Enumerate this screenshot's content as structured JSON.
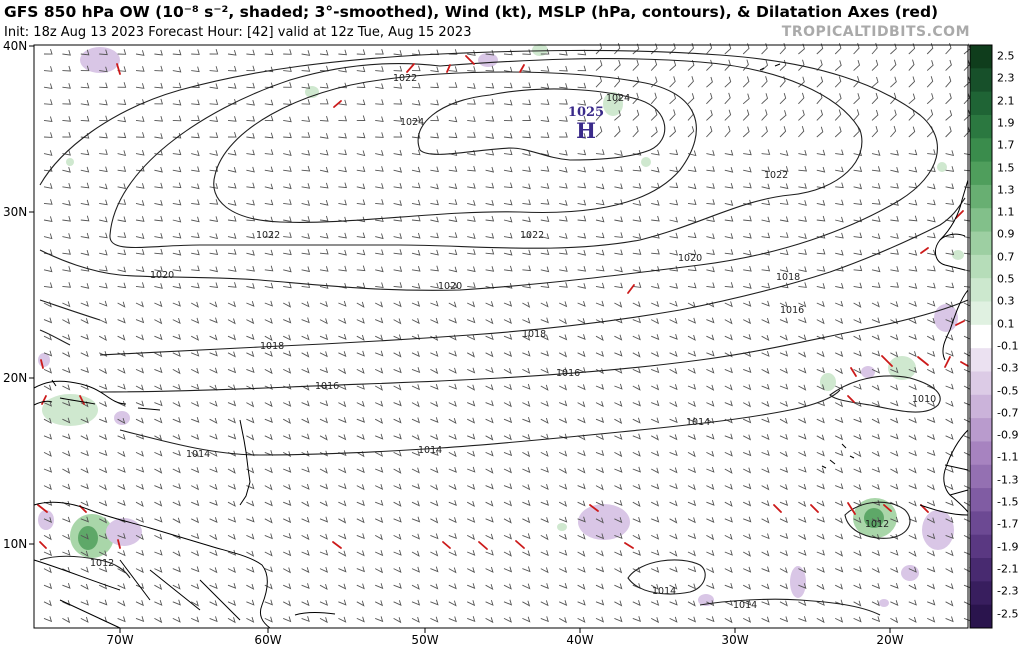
{
  "header": {
    "title": "GFS 850 hPa OW (10⁻⁸ s⁻², shaded; 3°-smoothed), Wind (kt), MSLP (hPa, contours), & Dilatation Axes (red)",
    "subtitle": "Init: 18z Aug 13 2023   Forecast Hour: [42]   valid at 12z Tue, Aug 15 2023",
    "watermark": "TROPICALTIDBITS.COM"
  },
  "map": {
    "lat_labels": [
      "40N",
      "30N",
      "20N",
      "10N"
    ],
    "lon_labels": [
      "70W",
      "60W",
      "50W",
      "40W",
      "30W",
      "20W"
    ],
    "high_center": {
      "value": "1025",
      "letter": "H"
    },
    "isobar_labels": [
      "1022",
      "1024",
      "1024",
      "1022",
      "1022",
      "1022",
      "1020",
      "1020",
      "1020",
      "1018",
      "1018",
      "1018",
      "1016",
      "1016",
      "1016",
      "1014",
      "1014",
      "1014",
      "1012",
      "1010",
      "1012",
      "1014",
      "1014"
    ],
    "colors": {
      "isobar": "#1a1a1a",
      "dilatation": "#cc1a1a",
      "barb": "#444444",
      "positive_ow": "#2e8a3e",
      "negative_ow": "#7a3d94"
    }
  },
  "colorbar": {
    "labels": [
      "2.5",
      "2.3",
      "2.1",
      "1.9",
      "1.7",
      "1.5",
      "1.3",
      "1.1",
      "0.9",
      "0.7",
      "0.5",
      "0.3",
      "0.1",
      "-0.1",
      "-0.3",
      "-0.5",
      "-0.7",
      "-0.9",
      "-1.1",
      "-1.3",
      "-1.5",
      "-1.7",
      "-1.9",
      "-2.1",
      "-2.3",
      "-2.5"
    ]
  }
}
